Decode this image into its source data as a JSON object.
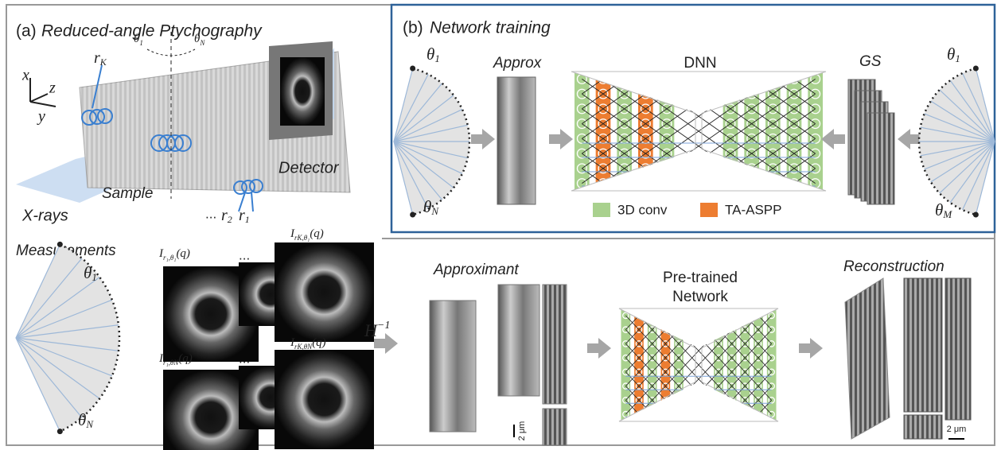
{
  "panel_a": {
    "label": "(a)",
    "title": "Reduced-angle Ptychography",
    "axis_x": "x",
    "axis_y": "y",
    "axis_z": "z",
    "probe_first": {
      "main": "r",
      "sub": "K"
    },
    "rotation_start": {
      "main": "θ",
      "sub": "1"
    },
    "rotation_end": {
      "main": "θ",
      "sub": "N"
    },
    "detector": "Detector",
    "sample": "Sample",
    "source": "X-rays",
    "ellipsis": "...",
    "probe_second": {
      "main": "r",
      "sub": "2"
    },
    "probe_last": {
      "main": "r",
      "sub": "1"
    }
  },
  "measurements": {
    "title": "Measurements",
    "angle_start": {
      "main": "θ",
      "sub": "1"
    },
    "angle_end": {
      "main": "θ",
      "sub": "N"
    },
    "patterns": [
      {
        "main": "I",
        "sub": "r₁,θ₁",
        "tail": "(q)"
      },
      {
        "main": "I",
        "sub": "rK,θ₁",
        "tail": "(q)"
      },
      {
        "main": "I",
        "sub": "r₁,θN",
        "tail": "(q)"
      },
      {
        "main": "I",
        "sub": "rK,θN",
        "tail": "(q)"
      }
    ],
    "ellipsis_top": "...",
    "ellipsis_bottom": "..."
  },
  "panel_b": {
    "label": "(b)",
    "title": "Network training",
    "input_start": {
      "main": "θ",
      "sub": "1"
    },
    "input_end": {
      "main": "θ",
      "sub": "N"
    },
    "approx": "Approx",
    "network": "DNN",
    "target": "GS",
    "output_start": {
      "main": "θ",
      "sub": "1"
    },
    "output_end": {
      "main": "θ",
      "sub": "M"
    },
    "legend": [
      "3D conv",
      "TA-ASPP"
    ]
  },
  "inference": {
    "operator": {
      "main": "H",
      "sup": "−1"
    },
    "approximant": "Approximant",
    "network": [
      "Pre-trained",
      "Network"
    ],
    "reconstruction": "Reconstruction",
    "scale_left": "2 μm",
    "scale_right": "2 μm"
  }
}
